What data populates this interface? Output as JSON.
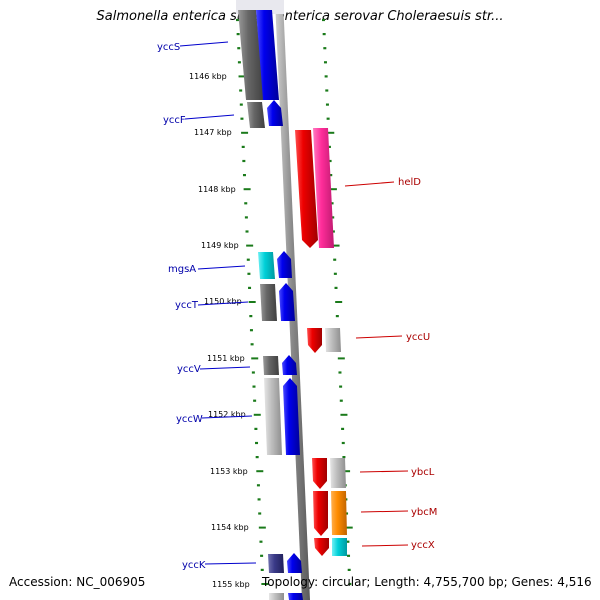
{
  "title": "Salmonella enterica subsp. enterica serovar Choleraesuis str...",
  "footer": {
    "accession": "Accession: NC_006905",
    "summary": "Topology: circular; Length: 4,755,700 bp; Genes: 4,516"
  },
  "map_data": {
    "kbp_labels": [
      "1146 kbp",
      "1147 kbp",
      "1148 kbp",
      "1149 kbp",
      "1150 kbp",
      "1151 kbp",
      "1152 kbp",
      "1153 kbp",
      "1154 kbp",
      "1155 kbp"
    ],
    "genes": [
      {
        "name": "yccS",
        "strand": "left"
      },
      {
        "name": "yccF",
        "strand": "left"
      },
      {
        "name": "helD",
        "strand": "right"
      },
      {
        "name": "mgsA",
        "strand": "left"
      },
      {
        "name": "yccT",
        "strand": "left"
      },
      {
        "name": "yccU",
        "strand": "right"
      },
      {
        "name": "yccV",
        "strand": "left"
      },
      {
        "name": "yccW",
        "strand": "left"
      },
      {
        "name": "ybcL",
        "strand": "right"
      },
      {
        "name": "ybcM",
        "strand": "right"
      },
      {
        "name": "yccX",
        "strand": "right"
      },
      {
        "name": "yccK",
        "strand": "left"
      }
    ],
    "colors": {
      "forward_gene": "#0a0aee",
      "reverse_gene": "#ee0a0a",
      "pink_gene": "#ff2d9a",
      "orange_gene": "#ff8c00",
      "cyan_gene": "#00d8e0",
      "gray_gene": "#6a6a6a",
      "light_gray_gene": "#bdbdbd",
      "backbone": "#8e8e8e",
      "tick": "#1a7a1a",
      "left_label": "#0000aa",
      "right_label": "#aa0000"
    }
  }
}
